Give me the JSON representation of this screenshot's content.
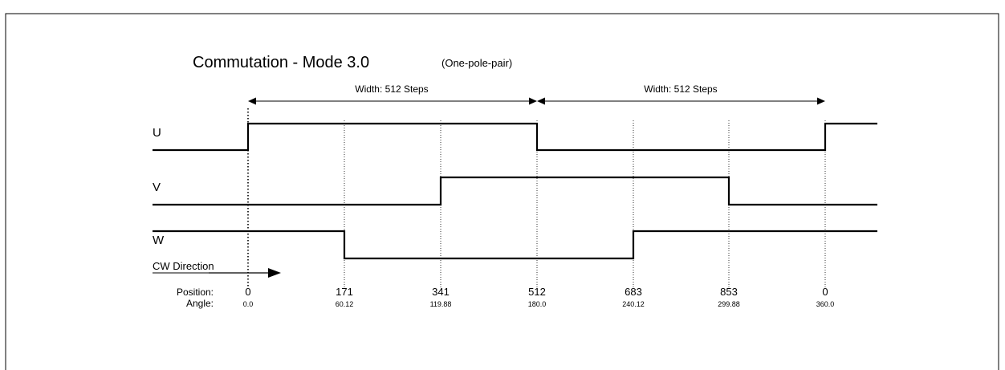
{
  "diagram": {
    "title": "Commutation - Mode 3.0",
    "subtitle": "(One-pole-pair)",
    "width_labels": [
      "Width: 512 Steps",
      "Width: 512 Steps"
    ],
    "signals": [
      {
        "name": "U",
        "levels": [
          0,
          1,
          1,
          1,
          0,
          0,
          0,
          1
        ]
      },
      {
        "name": "V",
        "levels": [
          0,
          0,
          0,
          1,
          1,
          1,
          0,
          0
        ]
      },
      {
        "name": "W",
        "levels": [
          1,
          1,
          0,
          0,
          0,
          1,
          1,
          1
        ]
      }
    ],
    "direction_label": "CW Direction",
    "position_label": "Position:",
    "angle_label": "Angle:",
    "positions": [
      "0",
      "171",
      "341",
      "512",
      "683",
      "853",
      "0"
    ],
    "angles": [
      "0.0",
      "60.12",
      "119.88",
      "180.0",
      "240.12",
      "299.88",
      "360.0"
    ]
  }
}
